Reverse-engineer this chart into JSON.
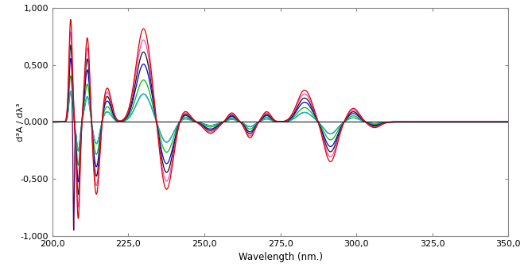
{
  "title": "",
  "xlabel": "Wavelength (nm.)",
  "ylabel": "d³A / dλ³",
  "xlim": [
    200.0,
    350.0
  ],
  "ylim": [
    -1.0,
    1.0
  ],
  "xticks": [
    200.0,
    225.0,
    250.0,
    275.0,
    300.0,
    325.0,
    350.0
  ],
  "yticks": [
    -1.0,
    -0.5,
    0.0,
    0.5,
    1.0
  ],
  "ytick_labels": [
    "-1,000",
    "-0,500",
    "0,000",
    "0,500",
    "1,000"
  ],
  "xtick_labels": [
    "200,0",
    "225,0",
    "250,0",
    "275,0",
    "300,0",
    "325,0",
    "350,0"
  ],
  "background_color": "#ffffff",
  "colors": [
    "#00cccc",
    "#00bb00",
    "#0000cc",
    "#111111",
    "#ff44bb",
    "#dd0000"
  ],
  "amplitudes": [
    0.3,
    0.45,
    0.62,
    0.75,
    0.88,
    1.0
  ],
  "purple_color": "#550055",
  "line_color": "#333333"
}
